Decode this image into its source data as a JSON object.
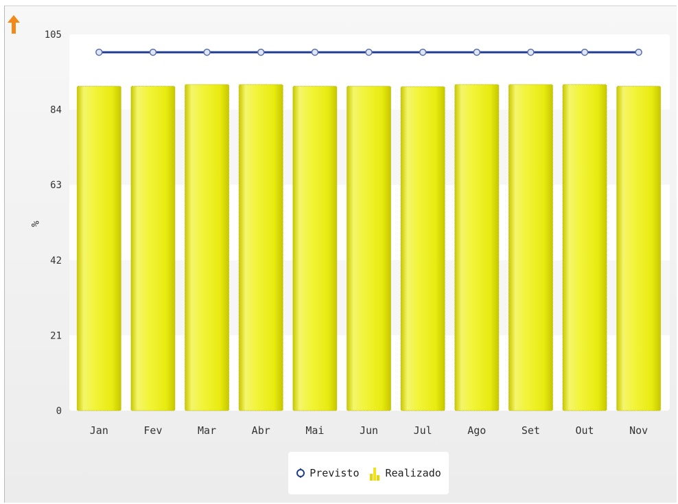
{
  "chart_data": {
    "type": "bar",
    "ylabel": "%",
    "ylim": [
      0,
      105
    ],
    "yticks": [
      0,
      21,
      42,
      63,
      84,
      105
    ],
    "categories": [
      "Jan",
      "Fev",
      "Mar",
      "Abr",
      "Mai",
      "Jun",
      "Jul",
      "Ago",
      "Set",
      "Out",
      "Nov"
    ],
    "series": [
      {
        "name": "Previsto",
        "type": "line",
        "color": "#1f3b8f",
        "values": [
          100,
          100,
          100,
          100,
          100,
          100,
          100,
          100,
          100,
          100,
          100
        ]
      },
      {
        "name": "Realizado",
        "type": "bar",
        "color": "#eef11f",
        "values": [
          90.5,
          90.5,
          91,
          91,
          90.5,
          90.5,
          90.4,
          91,
          91,
          91,
          90.5
        ]
      }
    ],
    "legend_position": "bottom-center",
    "grid": "horizontal bands"
  },
  "icons": {
    "top_left": "orange-up-arrow-icon"
  }
}
